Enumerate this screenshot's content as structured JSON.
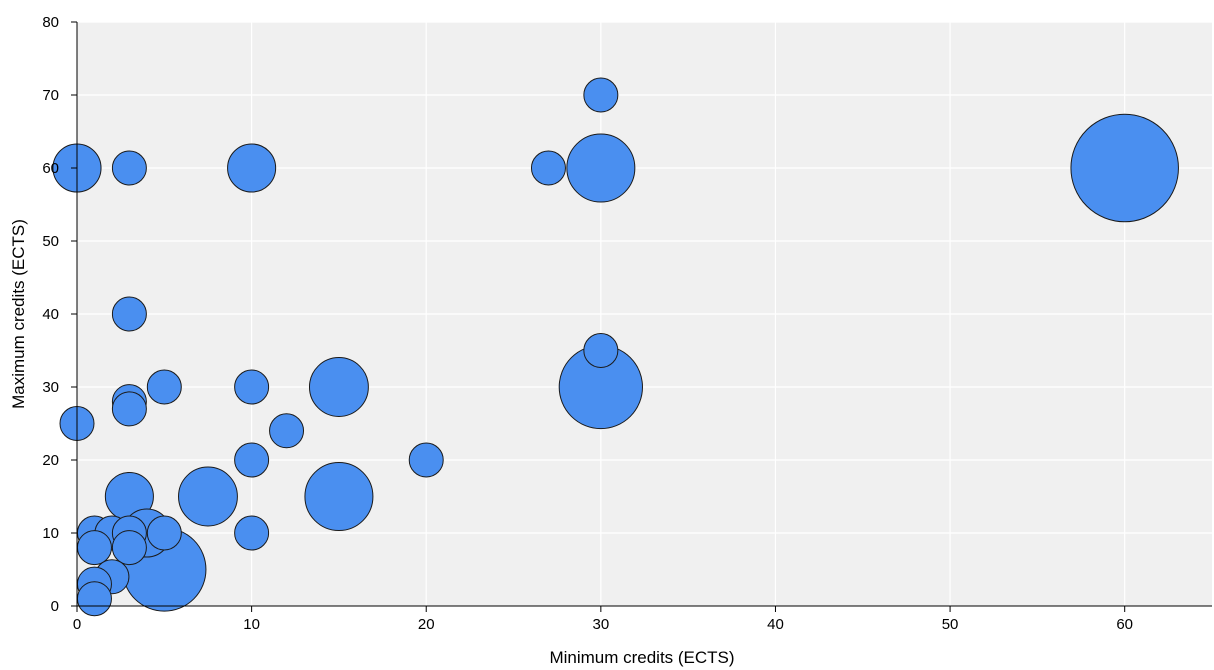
{
  "chart_data": {
    "type": "scatter",
    "title": "",
    "xlabel": "Minimum credits (ECTS)",
    "ylabel": "Maximum credits (ECTS)",
    "xlim": [
      0,
      65
    ],
    "ylim": [
      0,
      80
    ],
    "xticks": [
      "0",
      "10",
      "20",
      "30",
      "40",
      "50",
      "60"
    ],
    "yticks": [
      "0",
      "10",
      "20",
      "30",
      "40",
      "50",
      "60",
      "70",
      "80"
    ],
    "grid": true,
    "legend": "none",
    "colors": {
      "bubble_fill": "#4a8ff0",
      "bubble_stroke": "#1a1a1a",
      "plot_background": "#f0f0f0",
      "grid": "#ffffff",
      "axis": "#000000"
    },
    "size_note": "bubble area reflects the number of observations (relative size)",
    "points": [
      {
        "x": 0,
        "y": 60,
        "size": 2
      },
      {
        "x": 3,
        "y": 60,
        "size": 1
      },
      {
        "x": 10,
        "y": 60,
        "size": 2
      },
      {
        "x": 27,
        "y": 60,
        "size": 1
      },
      {
        "x": 30,
        "y": 60,
        "size": 4
      },
      {
        "x": 30,
        "y": 70,
        "size": 1
      },
      {
        "x": 60,
        "y": 60,
        "size": 10
      },
      {
        "x": 3,
        "y": 40,
        "size": 1
      },
      {
        "x": 30,
        "y": 35,
        "size": 1
      },
      {
        "x": 30,
        "y": 30,
        "size": 6
      },
      {
        "x": 5,
        "y": 30,
        "size": 1
      },
      {
        "x": 10,
        "y": 30,
        "size": 1
      },
      {
        "x": 15,
        "y": 30,
        "size": 3
      },
      {
        "x": 3,
        "y": 28,
        "size": 1
      },
      {
        "x": 3,
        "y": 27,
        "size": 1
      },
      {
        "x": 0,
        "y": 25,
        "size": 1
      },
      {
        "x": 12,
        "y": 24,
        "size": 1
      },
      {
        "x": 10,
        "y": 20,
        "size": 1
      },
      {
        "x": 20,
        "y": 20,
        "size": 1
      },
      {
        "x": 3,
        "y": 15,
        "size": 2
      },
      {
        "x": 7.5,
        "y": 15,
        "size": 3
      },
      {
        "x": 15,
        "y": 15,
        "size": 4
      },
      {
        "x": 1,
        "y": 10,
        "size": 1
      },
      {
        "x": 2,
        "y": 10,
        "size": 1
      },
      {
        "x": 3,
        "y": 10,
        "size": 1
      },
      {
        "x": 4,
        "y": 10,
        "size": 2
      },
      {
        "x": 5,
        "y": 10,
        "size": 1
      },
      {
        "x": 10,
        "y": 10,
        "size": 1
      },
      {
        "x": 1,
        "y": 8,
        "size": 1
      },
      {
        "x": 3,
        "y": 8,
        "size": 1
      },
      {
        "x": 5,
        "y": 5,
        "size": 6
      },
      {
        "x": 2,
        "y": 4,
        "size": 1
      },
      {
        "x": 1,
        "y": 3,
        "size": 1
      },
      {
        "x": 1,
        "y": 1,
        "size": 1
      }
    ]
  }
}
